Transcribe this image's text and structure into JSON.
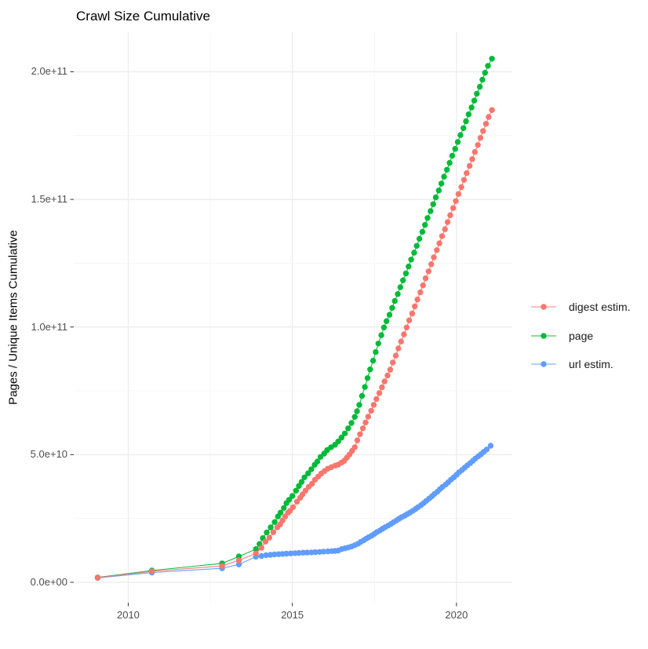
{
  "chart_data": {
    "type": "scatter",
    "title": "Crawl Size Cumulative",
    "xlabel": "",
    "ylabel": "Pages / Unique Items Cumulative",
    "grid": true,
    "legend_position": "right",
    "xlim": [
      2008.34,
      2021.7
    ],
    "ylim_e9": [
      -8,
      215.5
    ],
    "x_ticks": {
      "major": [
        2010,
        2015,
        2020
      ],
      "minor": [
        2012.5,
        2017.5
      ],
      "labels": [
        "2010",
        "2015",
        "2020"
      ]
    },
    "y_ticks": {
      "major_e9": [
        0,
        50,
        100,
        150,
        200
      ],
      "minor_e9": [
        25,
        75,
        125,
        175
      ],
      "labels": [
        "0.0e+00",
        "5.0e+10",
        "1.0e+11",
        "1.5e+11",
        "2.0e+11"
      ]
    },
    "draw_order": [
      "page",
      "url estim.",
      "digest estim."
    ],
    "series": [
      {
        "name": "digest estim.",
        "color": "#F8766D",
        "points_year_billions": [
          [
            2009.07,
            1.8
          ],
          [
            2010.72,
            4.3
          ],
          [
            2012.86,
            6.4
          ],
          [
            2013.37,
            8.6
          ],
          [
            2013.89,
            11.3
          ],
          [
            2014.06,
            13.5
          ],
          [
            2014.18,
            15.9
          ],
          [
            2014.3,
            17.5
          ],
          [
            2014.42,
            19.6
          ],
          [
            2014.54,
            21.5
          ],
          [
            2014.63,
            22.7
          ],
          [
            2014.7,
            24.2
          ],
          [
            2014.78,
            25.8
          ],
          [
            2014.87,
            27.3
          ],
          [
            2014.93,
            28.0
          ],
          [
            2015.02,
            29.4
          ],
          [
            2015.14,
            31.6
          ],
          [
            2015.24,
            33.1
          ],
          [
            2015.31,
            34.4
          ],
          [
            2015.4,
            35.9
          ],
          [
            2015.5,
            37.4
          ],
          [
            2015.6,
            38.6
          ],
          [
            2015.69,
            40.2
          ],
          [
            2015.79,
            41.4
          ],
          [
            2015.88,
            42.6
          ],
          [
            2015.98,
            43.6
          ],
          [
            2016.08,
            44.5
          ],
          [
            2016.19,
            45.1
          ],
          [
            2016.31,
            45.7
          ],
          [
            2016.4,
            46.1
          ],
          [
            2016.5,
            46.9
          ],
          [
            2016.58,
            47.6
          ],
          [
            2016.66,
            48.8
          ],
          [
            2016.74,
            50.0
          ],
          [
            2016.82,
            51.5
          ],
          [
            2016.9,
            52.9
          ],
          [
            2016.98,
            55.6
          ],
          [
            2017.06,
            58.0
          ],
          [
            2017.15,
            60.3
          ],
          [
            2017.23,
            62.6
          ],
          [
            2017.31,
            64.9
          ],
          [
            2017.4,
            67.2
          ],
          [
            2017.48,
            69.5
          ],
          [
            2017.56,
            71.8
          ],
          [
            2017.65,
            74.1
          ],
          [
            2017.73,
            76.4
          ],
          [
            2017.81,
            78.7
          ],
          [
            2017.9,
            81.0
          ],
          [
            2017.98,
            83.3
          ],
          [
            2018.06,
            86.1
          ],
          [
            2018.15,
            88.8
          ],
          [
            2018.23,
            91.6
          ],
          [
            2018.31,
            94.3
          ],
          [
            2018.4,
            97.1
          ],
          [
            2018.48,
            99.8
          ],
          [
            2018.56,
            102.6
          ],
          [
            2018.65,
            105.3
          ],
          [
            2018.73,
            108.1
          ],
          [
            2018.81,
            110.8
          ],
          [
            2018.9,
            113.6
          ],
          [
            2018.98,
            116.3
          ],
          [
            2019.06,
            119.1
          ],
          [
            2019.15,
            121.8
          ],
          [
            2019.23,
            124.6
          ],
          [
            2019.31,
            127.3
          ],
          [
            2019.4,
            130.1
          ],
          [
            2019.48,
            132.8
          ],
          [
            2019.56,
            135.6
          ],
          [
            2019.65,
            138.3
          ],
          [
            2019.73,
            141.1
          ],
          [
            2019.81,
            143.8
          ],
          [
            2019.9,
            146.6
          ],
          [
            2019.98,
            149.3
          ],
          [
            2020.06,
            152.1
          ],
          [
            2020.15,
            154.8
          ],
          [
            2020.23,
            157.6
          ],
          [
            2020.31,
            160.3
          ],
          [
            2020.4,
            163.1
          ],
          [
            2020.48,
            165.8
          ],
          [
            2020.56,
            168.6
          ],
          [
            2020.65,
            171.3
          ],
          [
            2020.73,
            174.1
          ],
          [
            2020.81,
            176.8
          ],
          [
            2020.9,
            179.6
          ],
          [
            2020.98,
            182.3
          ],
          [
            2021.08,
            185.0
          ]
        ]
      },
      {
        "name": "page",
        "color": "#00BA38",
        "points_year_billions": [
          [
            2009.07,
            1.9
          ],
          [
            2010.72,
            4.6
          ],
          [
            2012.86,
            7.4
          ],
          [
            2013.37,
            10.1
          ],
          [
            2013.89,
            13.0
          ],
          [
            2014.0,
            15.0
          ],
          [
            2014.1,
            17.3
          ],
          [
            2014.22,
            19.5
          ],
          [
            2014.34,
            21.5
          ],
          [
            2014.46,
            23.6
          ],
          [
            2014.56,
            25.8
          ],
          [
            2014.64,
            27.3
          ],
          [
            2014.74,
            29.1
          ],
          [
            2014.82,
            31.0
          ],
          [
            2014.9,
            32.3
          ],
          [
            2015.0,
            33.8
          ],
          [
            2015.11,
            35.9
          ],
          [
            2015.2,
            37.7
          ],
          [
            2015.28,
            39.3
          ],
          [
            2015.37,
            41.1
          ],
          [
            2015.48,
            42.7
          ],
          [
            2015.58,
            44.3
          ],
          [
            2015.68,
            46.0
          ],
          [
            2015.76,
            47.3
          ],
          [
            2015.86,
            49.1
          ],
          [
            2015.97,
            50.4
          ],
          [
            2016.06,
            51.8
          ],
          [
            2016.18,
            52.9
          ],
          [
            2016.3,
            53.9
          ],
          [
            2016.4,
            55.2
          ],
          [
            2016.5,
            56.7
          ],
          [
            2016.6,
            58.3
          ],
          [
            2016.7,
            60.3
          ],
          [
            2016.8,
            62.4
          ],
          [
            2016.9,
            64.8
          ],
          [
            2016.97,
            67.0
          ],
          [
            2017.04,
            69.5
          ],
          [
            2017.12,
            73.0
          ],
          [
            2017.21,
            76.5
          ],
          [
            2017.29,
            80.0
          ],
          [
            2017.37,
            83.4
          ],
          [
            2017.46,
            86.8
          ],
          [
            2017.54,
            90.2
          ],
          [
            2017.62,
            93.5
          ],
          [
            2017.71,
            96.8
          ],
          [
            2017.79,
            99.8
          ],
          [
            2017.87,
            102.3
          ],
          [
            2017.96,
            104.8
          ],
          [
            2018.04,
            107.5
          ],
          [
            2018.12,
            110.2
          ],
          [
            2018.21,
            112.9
          ],
          [
            2018.29,
            115.6
          ],
          [
            2018.37,
            118.3
          ],
          [
            2018.46,
            121.0
          ],
          [
            2018.54,
            123.7
          ],
          [
            2018.62,
            126.4
          ],
          [
            2018.71,
            129.1
          ],
          [
            2018.79,
            131.8
          ],
          [
            2018.87,
            134.6
          ],
          [
            2018.96,
            137.3
          ],
          [
            2019.04,
            140.0
          ],
          [
            2019.12,
            142.7
          ],
          [
            2019.21,
            145.4
          ],
          [
            2019.29,
            148.1
          ],
          [
            2019.37,
            150.8
          ],
          [
            2019.46,
            153.5
          ],
          [
            2019.54,
            156.2
          ],
          [
            2019.62,
            158.9
          ],
          [
            2019.71,
            161.6
          ],
          [
            2019.79,
            164.3
          ],
          [
            2019.87,
            167.1
          ],
          [
            2019.96,
            169.8
          ],
          [
            2020.04,
            172.5
          ],
          [
            2020.12,
            175.2
          ],
          [
            2020.21,
            177.9
          ],
          [
            2020.29,
            180.6
          ],
          [
            2020.37,
            183.3
          ],
          [
            2020.46,
            186.0
          ],
          [
            2020.54,
            188.7
          ],
          [
            2020.62,
            191.4
          ],
          [
            2020.71,
            194.1
          ],
          [
            2020.79,
            196.9
          ],
          [
            2020.87,
            199.6
          ],
          [
            2020.96,
            202.3
          ],
          [
            2021.08,
            205.1
          ]
        ]
      },
      {
        "name": "url estim.",
        "color": "#619CFF",
        "points_year_billions": [
          [
            2009.07,
            1.7
          ],
          [
            2010.72,
            3.8
          ],
          [
            2012.86,
            5.5
          ],
          [
            2013.37,
            7.0
          ],
          [
            2013.89,
            10.0
          ],
          [
            2014.06,
            10.3
          ],
          [
            2014.2,
            10.6
          ],
          [
            2014.33,
            10.75
          ],
          [
            2014.45,
            10.9
          ],
          [
            2014.58,
            11.0
          ],
          [
            2014.7,
            11.1
          ],
          [
            2014.82,
            11.2
          ],
          [
            2014.95,
            11.3
          ],
          [
            2015.08,
            11.4
          ],
          [
            2015.2,
            11.5
          ],
          [
            2015.33,
            11.6
          ],
          [
            2015.45,
            11.65
          ],
          [
            2015.58,
            11.7
          ],
          [
            2015.7,
            11.8
          ],
          [
            2015.83,
            11.9
          ],
          [
            2015.95,
            12.0
          ],
          [
            2016.08,
            12.1
          ],
          [
            2016.2,
            12.2
          ],
          [
            2016.3,
            12.3
          ],
          [
            2016.4,
            12.4
          ],
          [
            2016.5,
            13.0
          ],
          [
            2016.6,
            13.3
          ],
          [
            2016.7,
            13.6
          ],
          [
            2016.8,
            14.0
          ],
          [
            2016.9,
            14.5
          ],
          [
            2017.0,
            15.1
          ],
          [
            2017.08,
            15.8
          ],
          [
            2017.17,
            16.4
          ],
          [
            2017.25,
            17.1
          ],
          [
            2017.33,
            17.7
          ],
          [
            2017.42,
            18.3
          ],
          [
            2017.5,
            19.0
          ],
          [
            2017.58,
            19.7
          ],
          [
            2017.67,
            20.3
          ],
          [
            2017.75,
            21.0
          ],
          [
            2017.83,
            21.6
          ],
          [
            2017.92,
            22.2
          ],
          [
            2018.0,
            22.8
          ],
          [
            2018.08,
            23.5
          ],
          [
            2018.17,
            24.2
          ],
          [
            2018.25,
            24.9
          ],
          [
            2018.33,
            25.5
          ],
          [
            2018.42,
            26.1
          ],
          [
            2018.5,
            26.7
          ],
          [
            2018.58,
            27.3
          ],
          [
            2018.67,
            28.0
          ],
          [
            2018.75,
            28.7
          ],
          [
            2018.83,
            29.4
          ],
          [
            2018.92,
            30.2
          ],
          [
            2019.0,
            31.0
          ],
          [
            2019.08,
            31.9
          ],
          [
            2019.17,
            32.8
          ],
          [
            2019.25,
            33.7
          ],
          [
            2019.33,
            34.6
          ],
          [
            2019.42,
            35.5
          ],
          [
            2019.5,
            36.5
          ],
          [
            2019.58,
            37.4
          ],
          [
            2019.67,
            38.3
          ],
          [
            2019.75,
            39.2
          ],
          [
            2019.83,
            40.2
          ],
          [
            2019.92,
            41.1
          ],
          [
            2020.0,
            42.1
          ],
          [
            2020.08,
            43.1
          ],
          [
            2020.17,
            44.0
          ],
          [
            2020.25,
            44.9
          ],
          [
            2020.33,
            45.8
          ],
          [
            2020.42,
            46.7
          ],
          [
            2020.5,
            47.6
          ],
          [
            2020.58,
            48.5
          ],
          [
            2020.67,
            49.4
          ],
          [
            2020.75,
            50.2
          ],
          [
            2020.83,
            51.1
          ],
          [
            2020.92,
            52.0
          ],
          [
            2021.04,
            53.5
          ]
        ]
      }
    ]
  },
  "style": {
    "background": "#FFFFFF",
    "grid_major_color": "#ECECEC",
    "grid_minor_color": "#F4F4F4",
    "tick_color": "#333333",
    "tick_label_color": "#4D4D4D",
    "title_color": "#000000",
    "point_radius": 3.7,
    "line_width": 1.1
  }
}
